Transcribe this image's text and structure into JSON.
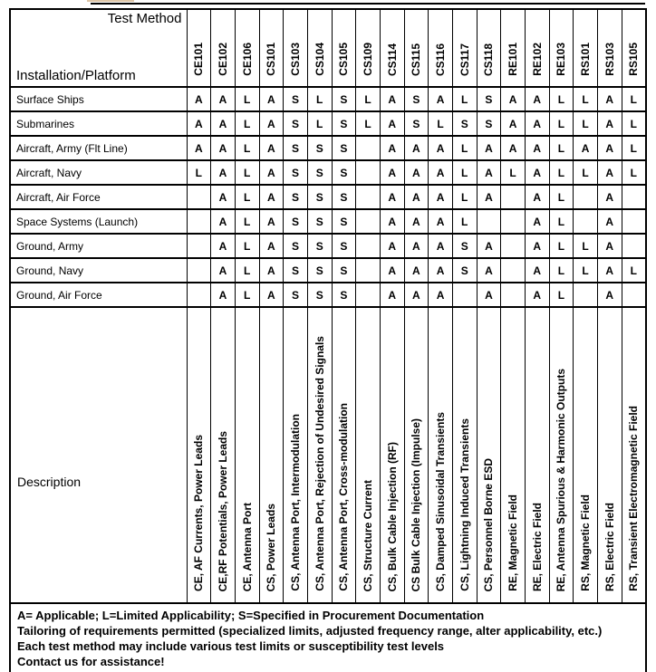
{
  "header": {
    "test_method_label": "Test Method",
    "installation_label": "Installation/Platform",
    "description_label": "Description"
  },
  "columns": [
    {
      "id": "CE101",
      "description": "CE, AF Currents, Power Leads"
    },
    {
      "id": "CE102",
      "description": "CE,RF Potentials, Power Leads"
    },
    {
      "id": "CE106",
      "description": "CE, Antenna Port"
    },
    {
      "id": "CS101",
      "description": "CS, Power Leads"
    },
    {
      "id": "CS103",
      "description": "CS, Antenna Port, Intermodulation"
    },
    {
      "id": "CS104",
      "description": "CS, Antenna Port, Rejection of Undesired Signals"
    },
    {
      "id": "CS105",
      "description": "CS, Antenna Port, Cross-modulation"
    },
    {
      "id": "CS109",
      "description": "CS, Structure Current"
    },
    {
      "id": "CS114",
      "description": "CS, Bulk Cable Injection (RF)"
    },
    {
      "id": "CS115",
      "description": "CS Bulk Cable Injection (Impulse)"
    },
    {
      "id": "CS116",
      "description": "CS, Damped Sinusoidal Transients"
    },
    {
      "id": "CS117",
      "description": "CS, Lightning Induced Transients"
    },
    {
      "id": "CS118",
      "description": "CS, Personnel Borne ESD"
    },
    {
      "id": "RE101",
      "description": "RE, Magnetic Field"
    },
    {
      "id": "RE102",
      "description": "RE, Electric Field"
    },
    {
      "id": "RE103",
      "description": "RE, Antenna Spurious & Harmonic Outputs"
    },
    {
      "id": "RS101",
      "description": "RS, Magnetic Field"
    },
    {
      "id": "RS103",
      "description": "RS, Electric Field"
    },
    {
      "id": "RS105",
      "description": "RS, Transient Electromagnetic Field"
    }
  ],
  "rows": [
    {
      "platform": "Surface Ships",
      "values": [
        "A",
        "A",
        "L",
        "A",
        "S",
        "L",
        "S",
        "L",
        "A",
        "S",
        "A",
        "L",
        "S",
        "A",
        "A",
        "L",
        "L",
        "A",
        "L"
      ]
    },
    {
      "platform": "Submarines",
      "values": [
        "A",
        "A",
        "L",
        "A",
        "S",
        "L",
        "S",
        "L",
        "A",
        "S",
        "L",
        "S",
        "S",
        "A",
        "A",
        "L",
        "L",
        "A",
        "L"
      ]
    },
    {
      "platform": "Aircraft, Army (Flt Line)",
      "values": [
        "A",
        "A",
        "L",
        "A",
        "S",
        "S",
        "S",
        "",
        "A",
        "A",
        "A",
        "L",
        "A",
        "A",
        "A",
        "L",
        "A",
        "A",
        "L"
      ]
    },
    {
      "platform": "Aircraft, Navy",
      "values": [
        "L",
        "A",
        "L",
        "A",
        "S",
        "S",
        "S",
        "",
        "A",
        "A",
        "A",
        "L",
        "A",
        "L",
        "A",
        "L",
        "L",
        "A",
        "L"
      ]
    },
    {
      "platform": "Aircraft, Air Force",
      "values": [
        "",
        "A",
        "L",
        "A",
        "S",
        "S",
        "S",
        "",
        "A",
        "A",
        "A",
        "L",
        "A",
        "",
        "A",
        "L",
        "",
        "A",
        ""
      ]
    },
    {
      "platform": "Space Systems (Launch)",
      "values": [
        "",
        "A",
        "L",
        "A",
        "S",
        "S",
        "S",
        "",
        "A",
        "A",
        "A",
        "L",
        "",
        "",
        "A",
        "L",
        "",
        "A",
        ""
      ]
    },
    {
      "platform": "Ground, Army",
      "values": [
        "",
        "A",
        "L",
        "A",
        "S",
        "S",
        "S",
        "",
        "A",
        "A",
        "A",
        "S",
        "A",
        "",
        "A",
        "L",
        "L",
        "A",
        ""
      ]
    },
    {
      "platform": "Ground, Navy",
      "values": [
        "",
        "A",
        "L",
        "A",
        "S",
        "S",
        "S",
        "",
        "A",
        "A",
        "A",
        "S",
        "A",
        "",
        "A",
        "L",
        "L",
        "A",
        "L"
      ]
    },
    {
      "platform": "Ground, Air Force",
      "values": [
        "",
        "A",
        "L",
        "A",
        "S",
        "S",
        "S",
        "",
        "A",
        "A",
        "A",
        "",
        "A",
        "",
        "A",
        "L",
        "",
        "A",
        ""
      ]
    }
  ],
  "footer": {
    "lines": [
      "A= Applicable; L=Limited Applicability; S=Specified in Procurement Documentation",
      "Tailoring of requirements permitted (specialized limits, adjusted frequency range, alter applicability, etc.)",
      "Each test method may include various test limits or susceptibility test levels",
      "Contact us for assistance!"
    ]
  },
  "colors": {
    "border": "#000000",
    "text": "#000000",
    "background": "#ffffff"
  }
}
